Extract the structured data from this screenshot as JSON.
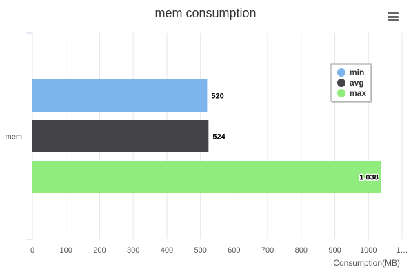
{
  "chart_data": {
    "type": "bar",
    "orientation": "horizontal",
    "title": "mem consumption",
    "categories": [
      "mem"
    ],
    "series": [
      {
        "name": "min",
        "color": "#7cb5ec",
        "values": [
          520
        ],
        "label": "520"
      },
      {
        "name": "avg",
        "color": "#434348",
        "values": [
          524
        ],
        "label": "524"
      },
      {
        "name": "max",
        "color": "#90ed7d",
        "values": [
          1038
        ],
        "label": "1 038"
      }
    ],
    "xlabel": "Consumption(MB)",
    "xlim": [
      0,
      1100
    ],
    "xticks": [
      "0",
      "100",
      "200",
      "300",
      "400",
      "500",
      "600",
      "700",
      "800",
      "900",
      "1000",
      "1…"
    ],
    "grid": true,
    "legend_position": "top-right",
    "menu_icon": "hamburger-menu-icon"
  }
}
